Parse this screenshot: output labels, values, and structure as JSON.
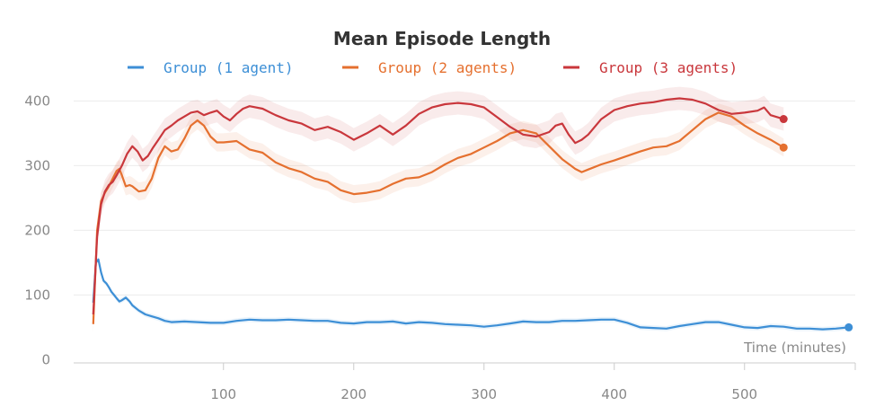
{
  "chart_data": {
    "type": "line",
    "title": "Mean Episode Length",
    "xlabel": "Time (minutes)",
    "ylabel": "",
    "xlim": [
      -15,
      585
    ],
    "ylim": [
      -5,
      420
    ],
    "xticks": [
      100,
      200,
      300,
      400,
      500
    ],
    "yticks": [
      0,
      100,
      200,
      300,
      400
    ],
    "grid": "horizontal",
    "legend_position": "top-center",
    "series": [
      {
        "name": "Group (1 agent)",
        "color": "#3d8fd6",
        "band": 4,
        "x": [
          0,
          2,
          4,
          6,
          8,
          10,
          12,
          14,
          16,
          18,
          20,
          22,
          25,
          28,
          30,
          35,
          40,
          45,
          50,
          55,
          60,
          70,
          80,
          90,
          100,
          110,
          120,
          130,
          140,
          150,
          160,
          170,
          180,
          190,
          200,
          210,
          220,
          230,
          240,
          250,
          260,
          270,
          280,
          290,
          300,
          310,
          320,
          330,
          340,
          350,
          360,
          370,
          380,
          390,
          400,
          410,
          420,
          430,
          440,
          450,
          460,
          470,
          480,
          490,
          500,
          510,
          520,
          530,
          540,
          550,
          560,
          570,
          580
        ],
        "values": [
          88,
          150,
          155,
          135,
          122,
          118,
          112,
          105,
          100,
          95,
          90,
          92,
          96,
          90,
          84,
          76,
          70,
          67,
          64,
          60,
          58,
          59,
          58,
          57,
          57,
          60,
          62,
          61,
          61,
          62,
          61,
          60,
          60,
          57,
          56,
          58,
          58,
          59,
          56,
          58,
          57,
          55,
          54,
          53,
          51,
          53,
          56,
          59,
          58,
          58,
          60,
          60,
          61,
          62,
          62,
          57,
          50,
          49,
          48,
          52,
          55,
          58,
          58,
          54,
          50,
          49,
          52,
          51,
          48,
          48,
          47,
          48,
          50
        ]
      },
      {
        "name": "Group (2 agents)",
        "color": "#e5702f",
        "band": 14,
        "x": [
          0,
          3,
          6,
          9,
          12,
          15,
          18,
          20,
          22,
          25,
          28,
          30,
          35,
          40,
          45,
          50,
          55,
          60,
          65,
          70,
          75,
          80,
          85,
          90,
          95,
          100,
          110,
          120,
          130,
          140,
          150,
          160,
          170,
          180,
          190,
          200,
          210,
          220,
          230,
          240,
          250,
          260,
          270,
          280,
          290,
          300,
          310,
          320,
          330,
          340,
          350,
          360,
          370,
          375,
          380,
          390,
          400,
          410,
          420,
          430,
          440,
          450,
          460,
          470,
          480,
          490,
          500,
          510,
          520,
          530
        ],
        "values": [
          55,
          200,
          245,
          258,
          268,
          280,
          292,
          295,
          285,
          268,
          270,
          268,
          260,
          262,
          280,
          312,
          330,
          322,
          325,
          342,
          362,
          370,
          362,
          345,
          336,
          336,
          338,
          325,
          320,
          305,
          296,
          290,
          280,
          275,
          262,
          256,
          258,
          262,
          272,
          280,
          282,
          290,
          302,
          312,
          318,
          328,
          338,
          350,
          355,
          350,
          330,
          310,
          295,
          290,
          294,
          302,
          308,
          315,
          322,
          328,
          330,
          338,
          355,
          372,
          382,
          376,
          362,
          350,
          340,
          328
        ]
      },
      {
        "name": "Group (3 agents)",
        "color": "#c9373c",
        "band": 18,
        "x": [
          0,
          3,
          6,
          9,
          12,
          15,
          18,
          22,
          26,
          30,
          34,
          38,
          42,
          46,
          50,
          55,
          60,
          65,
          70,
          75,
          80,
          85,
          90,
          95,
          100,
          105,
          110,
          115,
          120,
          130,
          140,
          150,
          160,
          170,
          180,
          190,
          200,
          210,
          220,
          230,
          240,
          250,
          260,
          270,
          280,
          290,
          300,
          310,
          320,
          330,
          340,
          350,
          355,
          360,
          365,
          370,
          375,
          380,
          390,
          400,
          410,
          420,
          430,
          440,
          450,
          460,
          470,
          480,
          490,
          500,
          510,
          515,
          520,
          530
        ],
        "values": [
          70,
          190,
          240,
          260,
          270,
          275,
          285,
          300,
          318,
          330,
          322,
          308,
          315,
          328,
          340,
          355,
          362,
          370,
          376,
          382,
          384,
          378,
          382,
          385,
          376,
          370,
          380,
          388,
          392,
          388,
          378,
          370,
          365,
          355,
          360,
          352,
          340,
          350,
          362,
          348,
          362,
          380,
          390,
          395,
          397,
          395,
          390,
          375,
          360,
          348,
          345,
          352,
          362,
          365,
          348,
          335,
          340,
          348,
          372,
          386,
          392,
          396,
          398,
          402,
          404,
          402,
          396,
          386,
          380,
          382,
          385,
          390,
          378,
          372
        ]
      }
    ]
  }
}
